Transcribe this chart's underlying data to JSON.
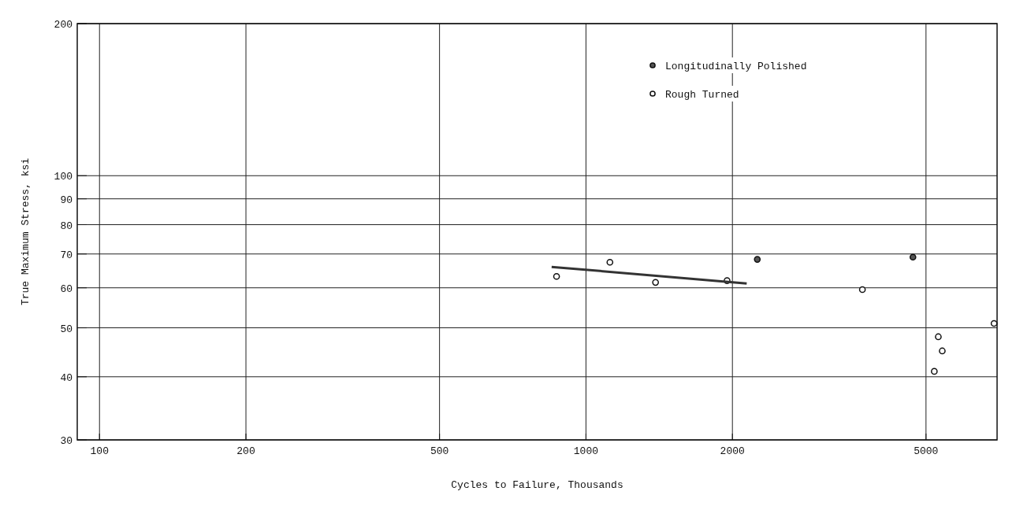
{
  "chart_data": {
    "type": "scatter",
    "xlabel": "Cycles to Failure, Thousands",
    "ylabel": "True Maximum Stress, ksi",
    "log": "xy",
    "xlim": [
      90,
      7000
    ],
    "xticks": [
      100,
      200,
      500,
      1000,
      2000,
      5000
    ],
    "ylim": [
      30,
      200
    ],
    "yticks": [
      30,
      40,
      50,
      60,
      70,
      80,
      90,
      100,
      200
    ],
    "grid": true,
    "legend": "top right",
    "marker": "circle",
    "series": [
      {
        "name": "Longitudinally Polished",
        "color": "#555555",
        "x": [
          2250,
          4700
        ],
        "values": [
          68.3,
          69
        ]
      },
      {
        "name": "Rough Turned",
        "color": "#ffffff",
        "x": [
          870,
          1120,
          1390,
          1950,
          3700,
          6900,
          5300,
          5400,
          5200
        ],
        "values": [
          63.2,
          67.4,
          61.5,
          62,
          59.5,
          51,
          48,
          45,
          41
        ]
      },
      {
        "type": "line",
        "marker": "none",
        "color": "#333333",
        "x": [
          850,
          2140
        ],
        "values": [
          66,
          61.2
        ]
      }
    ]
  }
}
